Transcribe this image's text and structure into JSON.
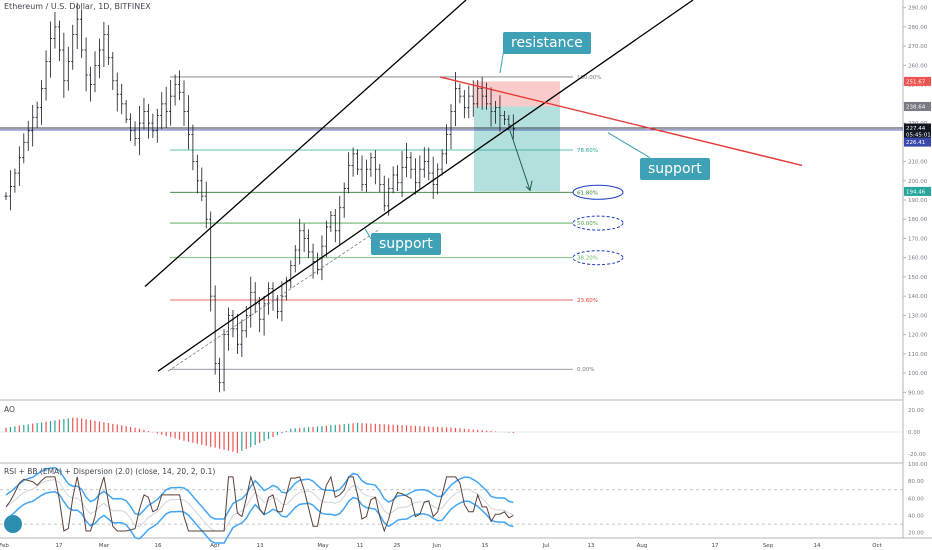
{
  "header": {
    "title": "Ethereum / U.S. Dollar, 1D, BITFINEX"
  },
  "indicators": {
    "ao_label": "AO",
    "rsi_label": "RSI + BB (EMA) + Dispersion (2.0) (close, 14, 20, 2, 0.1)"
  },
  "annotations": {
    "resistance": "resistance",
    "support_right": "support",
    "support_mid": "support"
  },
  "colors": {
    "up_candle": "#26a69a",
    "down_candle": "#ef5350",
    "bars": "#131722",
    "channel": "#000000",
    "resistance_line": "#e53935",
    "callout_bg": "#3ea1b5",
    "fib_blue": "#1e3fc8",
    "rsi_band": "#42a5f5"
  },
  "chart_data": {
    "type": "ohlc",
    "title": "Ethereum / U.S. Dollar, 1D, BITFINEX",
    "ylim": [
      86,
      294
    ],
    "yticks": [
      90,
      100,
      110,
      120,
      130,
      140,
      150,
      160,
      170,
      180,
      190,
      200,
      210,
      220,
      230,
      240,
      250,
      260,
      270,
      280,
      290
    ],
    "ytick_labels": [
      "90.00",
      "100.00",
      "110.00",
      "120.00",
      "130.00",
      "140.00",
      "150.00",
      "160.00",
      "170.00",
      "180.00",
      "190.00",
      "200.00",
      "210.00",
      "220.00",
      "230.00",
      "240.00",
      "250.00",
      "260.00",
      "270.00",
      "280.00",
      "290.00"
    ],
    "xtick_labels": [
      "Feb",
      "17",
      "Mar",
      "16",
      "Apr",
      "13",
      "May",
      "11",
      "25",
      "Jun",
      "15",
      "Jul",
      "13",
      "Aug",
      "17",
      "Sep",
      "14",
      "Oct"
    ],
    "price_path": [
      [
        0,
        192
      ],
      [
        1,
        197
      ],
      [
        2,
        204
      ],
      [
        3,
        212
      ],
      [
        4,
        220
      ],
      [
        5,
        226
      ],
      [
        6,
        233
      ],
      [
        7,
        238
      ],
      [
        8,
        248
      ],
      [
        9,
        262
      ],
      [
        10,
        274
      ],
      [
        11,
        280
      ],
      [
        12,
        268
      ],
      [
        13,
        252
      ],
      [
        14,
        262
      ],
      [
        15,
        276
      ],
      [
        16,
        284
      ],
      [
        17,
        268
      ],
      [
        18,
        255
      ],
      [
        19,
        250
      ],
      [
        20,
        260
      ],
      [
        21,
        268
      ],
      [
        22,
        276
      ],
      [
        23,
        264
      ],
      [
        24,
        252
      ],
      [
        25,
        245
      ],
      [
        26,
        240
      ],
      [
        27,
        232
      ],
      [
        28,
        226
      ],
      [
        29,
        222
      ],
      [
        30,
        230
      ],
      [
        31,
        236
      ],
      [
        32,
        230
      ],
      [
        33,
        226
      ],
      [
        34,
        234
      ],
      [
        35,
        240
      ],
      [
        36,
        236
      ],
      [
        37,
        244
      ],
      [
        38,
        250
      ],
      [
        39,
        246
      ],
      [
        40,
        236
      ],
      [
        41,
        224
      ],
      [
        42,
        210
      ],
      [
        43,
        200
      ],
      [
        44,
        192
      ],
      [
        45,
        180
      ],
      [
        46,
        140
      ],
      [
        47,
        105
      ],
      [
        48,
        95
      ],
      [
        49,
        120
      ],
      [
        50,
        130
      ],
      [
        51,
        123
      ],
      [
        52,
        115
      ],
      [
        53,
        122
      ],
      [
        54,
        130
      ],
      [
        55,
        142
      ],
      [
        56,
        136
      ],
      [
        57,
        128
      ],
      [
        58,
        136
      ],
      [
        59,
        144
      ],
      [
        60,
        138
      ],
      [
        61,
        132
      ],
      [
        62,
        140
      ],
      [
        63,
        148
      ],
      [
        64,
        156
      ],
      [
        65,
        164
      ],
      [
        66,
        174
      ],
      [
        67,
        170
      ],
      [
        68,
        163
      ],
      [
        69,
        158
      ],
      [
        70,
        154
      ],
      [
        71,
        166
      ],
      [
        72,
        176
      ],
      [
        73,
        182
      ],
      [
        74,
        174
      ],
      [
        75,
        186
      ],
      [
        76,
        196
      ],
      [
        77,
        208
      ],
      [
        78,
        214
      ],
      [
        79,
        206
      ],
      [
        80,
        198
      ],
      [
        81,
        206
      ],
      [
        82,
        212
      ],
      [
        83,
        206
      ],
      [
        84,
        198
      ],
      [
        85,
        187
      ],
      [
        86,
        196
      ],
      [
        87,
        203
      ],
      [
        88,
        199
      ],
      [
        89,
        207
      ],
      [
        90,
        212
      ],
      [
        91,
        206
      ],
      [
        92,
        199
      ],
      [
        93,
        206
      ],
      [
        94,
        210
      ],
      [
        95,
        204
      ],
      [
        96,
        198
      ],
      [
        97,
        206
      ],
      [
        98,
        214
      ],
      [
        99,
        224
      ],
      [
        100,
        236
      ],
      [
        101,
        248
      ],
      [
        102,
        244
      ],
      [
        103,
        238
      ],
      [
        104,
        244
      ],
      [
        105,
        240
      ],
      [
        106,
        248
      ],
      [
        107,
        244
      ],
      [
        108,
        240
      ],
      [
        109,
        236
      ],
      [
        110,
        238
      ],
      [
        111,
        234
      ],
      [
        112,
        232
      ],
      [
        113,
        229
      ],
      [
        114,
        227
      ]
    ],
    "fibonacci": [
      {
        "level": "100.00%",
        "value": 254
      },
      {
        "level": "78.60%",
        "value": 216
      },
      {
        "level": "61.80%",
        "value": 194
      },
      {
        "level": "50.00%",
        "value": 178
      },
      {
        "level": "38.20%",
        "value": 160
      },
      {
        "level": "23.60%",
        "value": 138
      },
      {
        "level": "0.00%",
        "value": 102
      }
    ],
    "price_labels": [
      "251.67",
      "238.64",
      "227.44",
      "05:45:01",
      "226.41",
      "194.46"
    ],
    "short_position": {
      "entry": 238.64,
      "stop": 251.67,
      "target": 194.46
    },
    "horizontal_levels": [
      227.44,
      226.41
    ],
    "ao_ylim": [
      -20,
      20
    ],
    "ao_ticks": [
      "20.00",
      "0.00",
      "-20.00"
    ],
    "rsi_ylim": [
      15,
      100
    ],
    "rsi_ticks": [
      "100.00",
      "80.00",
      "60.00",
      "40.00",
      "20.00"
    ]
  }
}
